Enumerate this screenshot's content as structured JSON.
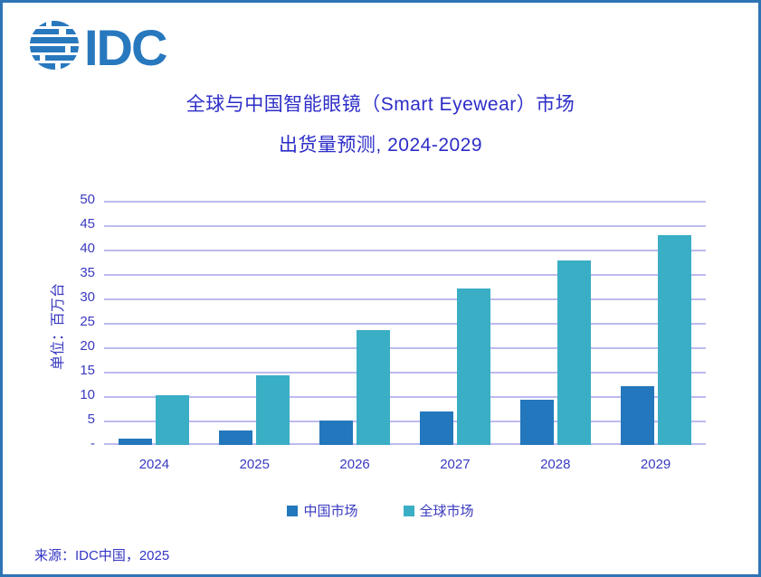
{
  "logo": {
    "text": "IDC",
    "color": "#2878BE",
    "icon": "globe-stripes-icon"
  },
  "title": {
    "line1": "全球与中国智能眼镜（Smart Eyewear）市场",
    "line2": "出货量预测, 2024-2029",
    "color": "#2D2DC8"
  },
  "chart_data": {
    "type": "bar",
    "categories": [
      "2024",
      "2025",
      "2026",
      "2027",
      "2028",
      "2029"
    ],
    "series": [
      {
        "id": "china-market",
        "name": "中国市场",
        "color": "#2377BC",
        "values": [
          1.3,
          2.9,
          5.0,
          6.8,
          9.3,
          12.0
        ]
      },
      {
        "id": "global-market",
        "name": "全球市场",
        "color": "#3AAEC5",
        "values": [
          10.2,
          14.2,
          23.5,
          32.0,
          37.8,
          43.0
        ]
      }
    ],
    "ylabel": "单位：百万台",
    "xlabel": "",
    "ylim": [
      0,
      50
    ],
    "ytick_step": 5,
    "ytick_labels": [
      "-",
      "5",
      "10",
      "15",
      "20",
      "25",
      "30",
      "35",
      "40",
      "45",
      "50"
    ],
    "grid": true,
    "gridline_color": "#BDBAEF",
    "legend_position": "bottom",
    "axis_text_color": "#3939C0"
  },
  "source": "来源：IDC中国，2025",
  "frame": {
    "border_color": "#2E75B6"
  }
}
